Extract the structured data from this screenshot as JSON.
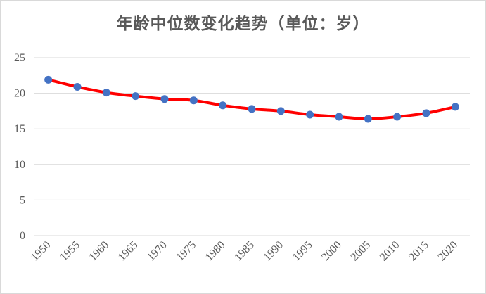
{
  "chart_data": {
    "type": "line",
    "title": "年龄中位数变化趋势（单位：岁）",
    "xlabel": "",
    "ylabel": "",
    "categories": [
      "1950",
      "1955",
      "1960",
      "1965",
      "1970",
      "1975",
      "1980",
      "1985",
      "1990",
      "1995",
      "2000",
      "2005",
      "2010",
      "2015",
      "2020"
    ],
    "series": [
      {
        "values": [
          21.9,
          20.9,
          20.1,
          19.6,
          19.2,
          19.0,
          18.3,
          17.8,
          17.5,
          17.0,
          16.7,
          16.4,
          16.7,
          17.2,
          18.1
        ]
      }
    ],
    "ylim": [
      0,
      25
    ],
    "yticks": [
      "0",
      "5",
      "10",
      "15",
      "20",
      "25"
    ],
    "grid": true,
    "line_color": "#ff0000",
    "marker_color": "#4472c4",
    "grid_color": "#d9d9d9"
  }
}
